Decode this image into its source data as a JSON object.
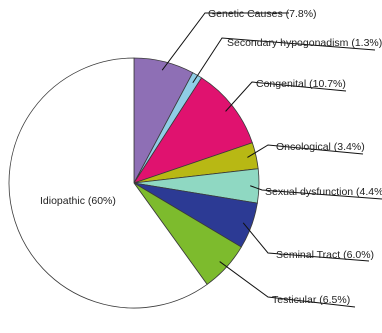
{
  "chart_data": {
    "type": "pie",
    "title": "",
    "slices": [
      {
        "name": "Genetic Causes",
        "value": 7.8,
        "label": "Genetic Causes  (7.8%)",
        "color": "#8e6fb5"
      },
      {
        "name": "Secondary hypogonadism",
        "value": 1.3,
        "label": "Secondary hypogonadism (1.3%)",
        "color": "#8fcde6"
      },
      {
        "name": "Congenital",
        "value": 10.7,
        "label": "Congenital (10.7%)",
        "color": "#e0126f"
      },
      {
        "name": "Oncological",
        "value": 3.4,
        "label": "Oncological (3.4%)",
        "color": "#b8b814"
      },
      {
        "name": "Sexual dysfunction",
        "value": 4.4,
        "label": "Sexual dysfunction (4.4%)",
        "color": "#8fd8c2"
      },
      {
        "name": "Seminal Tract",
        "value": 6.0,
        "label": "Seminal Tract (6.0%)",
        "color": "#2c3a94"
      },
      {
        "name": "Testicular",
        "value": 6.5,
        "label": "Testicular (6.5%)",
        "color": "#7dbb2d"
      },
      {
        "name": "Idiopathic",
        "value": 60,
        "label": "Idiopathic (60%)",
        "color": "#ffffff"
      }
    ],
    "start_angle_deg": 0,
    "direction": "clockwise",
    "legend": "none",
    "slice_border_color": "#3a3a3a"
  }
}
